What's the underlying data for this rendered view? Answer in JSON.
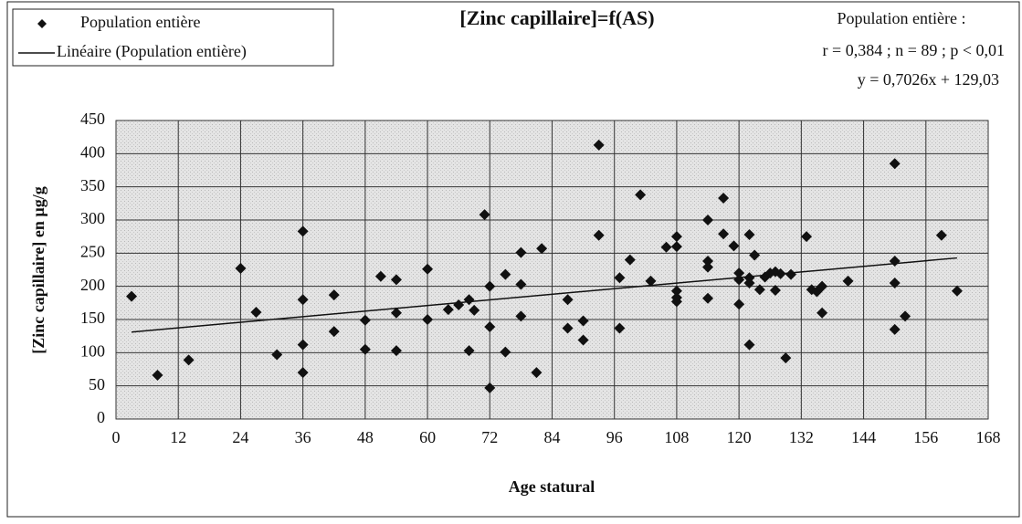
{
  "chart_data": {
    "type": "scatter",
    "title": "[Zinc capillaire]=f(AS)",
    "xlabel": "Age statural",
    "ylabel": "[Zinc capillaire] en µg/g",
    "annotations": [
      "Population entière :",
      "r = 0,384 ; n = 89 ; p < 0,01",
      "y = 0,7026x + 129,03"
    ],
    "xlim": [
      0,
      168
    ],
    "xticks": [
      0,
      12,
      24,
      36,
      48,
      60,
      72,
      84,
      96,
      108,
      120,
      132,
      144,
      156,
      168
    ],
    "ylim": [
      0,
      450
    ],
    "yticks": [
      0,
      50,
      100,
      150,
      200,
      250,
      300,
      350,
      400,
      450
    ],
    "grid": true,
    "series": [
      {
        "name": "Population entière",
        "color": "#111111",
        "kind": "points",
        "x": [
          3,
          8,
          14,
          24,
          27,
          31,
          36,
          36,
          36,
          36,
          42,
          42,
          48,
          48,
          51,
          54,
          54,
          54,
          60,
          60,
          64,
          66,
          68,
          68,
          69,
          71,
          72,
          72,
          72,
          75,
          75,
          78,
          78,
          78,
          81,
          82,
          87,
          87,
          90,
          90,
          93,
          93,
          97,
          97,
          99,
          101,
          103,
          106,
          108,
          108,
          108,
          108,
          108,
          114,
          114,
          114,
          114,
          117,
          117,
          119,
          120,
          120,
          120,
          122,
          122,
          122,
          122,
          123,
          124,
          125,
          126,
          127,
          127,
          128,
          129,
          130,
          133,
          134,
          135,
          136,
          136,
          141,
          150,
          150,
          150,
          150,
          152,
          159,
          162
        ],
        "values": [
          185,
          66,
          89,
          227,
          161,
          97,
          283,
          180,
          112,
          70,
          187,
          132,
          149,
          105,
          215,
          210,
          160,
          103,
          226,
          150,
          165,
          172,
          180,
          103,
          164,
          308,
          200,
          139,
          47,
          218,
          101,
          251,
          203,
          155,
          70,
          257,
          137,
          180,
          148,
          119,
          413,
          277,
          213,
          137,
          240,
          338,
          208,
          259,
          275,
          260,
          193,
          183,
          177,
          300,
          238,
          229,
          182,
          333,
          279,
          261,
          220,
          210,
          173,
          278,
          213,
          205,
          112,
          247,
          195,
          214,
          220,
          222,
          194,
          219,
          92,
          218,
          275,
          195,
          192,
          200,
          160,
          208,
          385,
          238,
          205,
          135,
          155,
          277,
          193
        ]
      },
      {
        "name": "Linéaire (Population entière)",
        "color": "#111111",
        "kind": "line",
        "x": [
          3,
          162
        ],
        "values": [
          131.1,
          242.8
        ]
      }
    ]
  }
}
